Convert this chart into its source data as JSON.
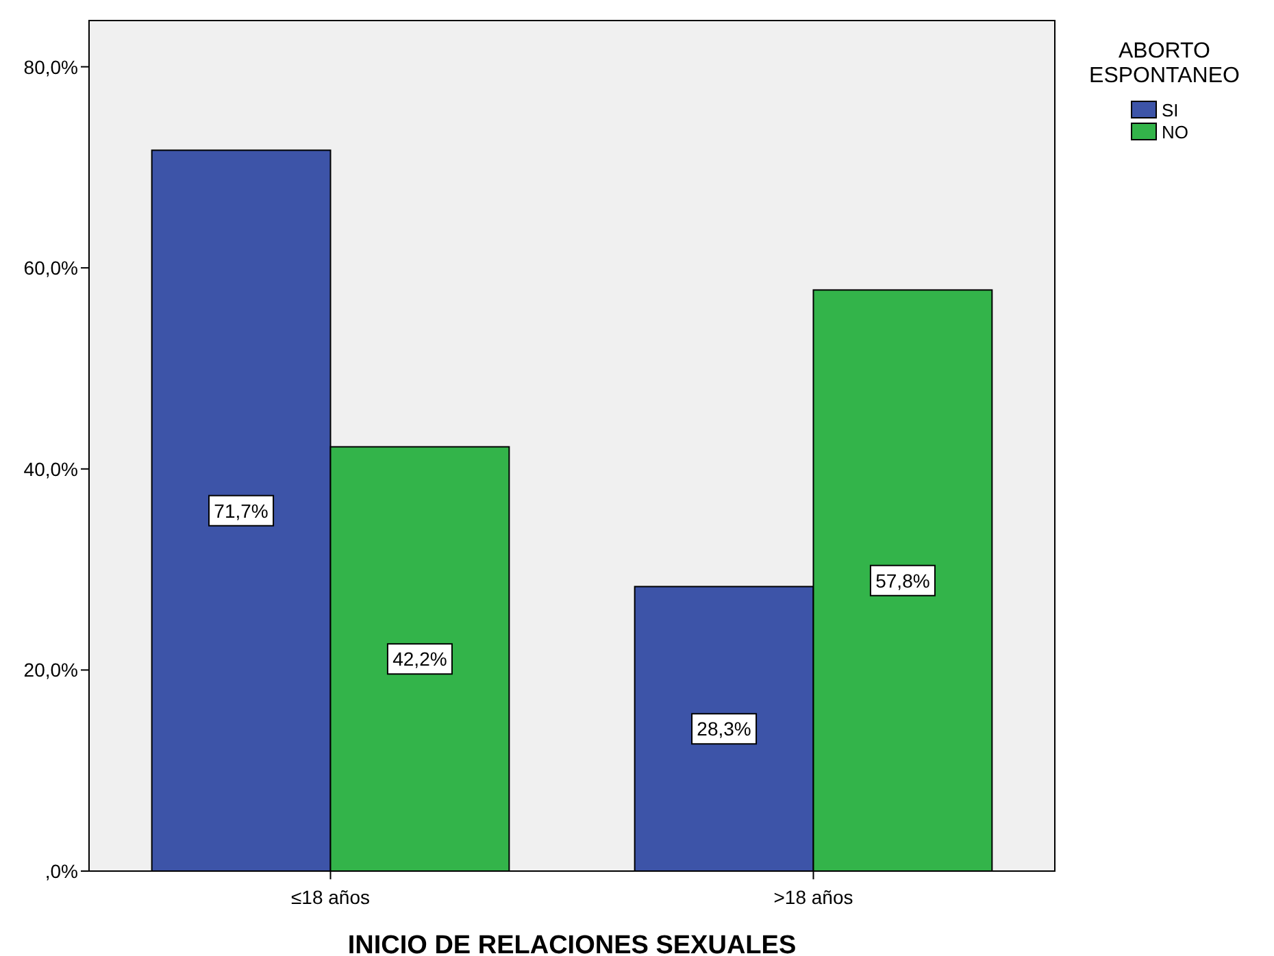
{
  "chart_data": {
    "type": "bar",
    "xlabel": "INICIO DE RELACIONES SEXUALES",
    "legend_title": "ABORTO ESPONTANEO",
    "categories": [
      "≤18 años",
      ">18 años"
    ],
    "series": [
      {
        "name": "SI",
        "color": "#3d54a8",
        "values": [
          71.7,
          28.3
        ],
        "value_labels": [
          "71,7%",
          "28,3%"
        ]
      },
      {
        "name": "NO",
        "color": "#33b44a",
        "values": [
          42.2,
          57.8
        ],
        "value_labels": [
          "42,2%",
          "57,8%"
        ]
      }
    ],
    "ylim": [
      0,
      84.6
    ],
    "yticks": [
      {
        "value": 0,
        "label": ",0%"
      },
      {
        "value": 20,
        "label": "20,0%"
      },
      {
        "value": 40,
        "label": "40,0%"
      },
      {
        "value": 60,
        "label": "60,0%"
      },
      {
        "value": 80,
        "label": "80,0%"
      }
    ],
    "legend": "top right"
  }
}
